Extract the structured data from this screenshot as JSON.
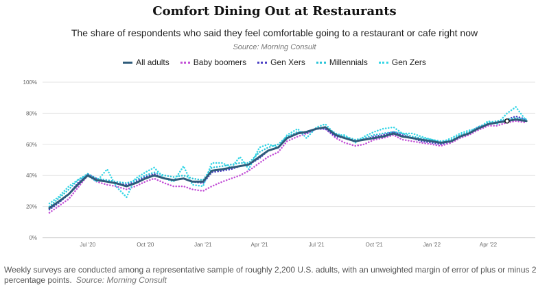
{
  "title": "Comfort Dining Out at Restaurants",
  "subtitle": "The share of respondents who said they feel comfortable going to a restaurant or cafe right now",
  "source": "Source: Morning Consult",
  "footnote": "Weekly surveys are conducted among a representative sample of roughly 2,200 U.S. adults, with an unweighted margin of error of plus or minus 2 percentage points.",
  "footnote_source": "Source: Morning Consult",
  "chart_data": {
    "type": "line",
    "title": "Comfort Dining Out at Restaurants",
    "xlabel": "",
    "ylabel": "",
    "ylim": [
      0,
      100
    ],
    "y_ticks": [
      0,
      20,
      40,
      60,
      80,
      100
    ],
    "y_tick_labels": [
      "0%",
      "20%",
      "40%",
      "60%",
      "80%",
      "100%"
    ],
    "x_tick_labels": [
      "Jul '20",
      "Oct '20",
      "Jan '21",
      "Apr '21",
      "Jul '21",
      "Oct '21",
      "Jan '22",
      "Apr '22"
    ],
    "x_tick_dates": [
      "2020-07-01",
      "2020-10-01",
      "2021-01-01",
      "2021-04-01",
      "2021-07-01",
      "2021-10-01",
      "2022-01-01",
      "2022-04-01"
    ],
    "x_range": [
      "2020-04-20",
      "2022-06-15"
    ],
    "grid": true,
    "legend_position": "top-center",
    "x": [
      "2020-05-01",
      "2020-05-15",
      "2020-06-01",
      "2020-06-15",
      "2020-07-01",
      "2020-07-15",
      "2020-08-01",
      "2020-08-15",
      "2020-09-01",
      "2020-09-15",
      "2020-10-01",
      "2020-10-15",
      "2020-11-01",
      "2020-11-15",
      "2020-12-01",
      "2020-12-15",
      "2021-01-01",
      "2021-01-15",
      "2021-02-01",
      "2021-02-15",
      "2021-03-01",
      "2021-03-15",
      "2021-04-01",
      "2021-04-15",
      "2021-05-01",
      "2021-05-15",
      "2021-06-01",
      "2021-06-15",
      "2021-07-01",
      "2021-07-15",
      "2021-08-01",
      "2021-08-15",
      "2021-09-01",
      "2021-09-15",
      "2021-10-01",
      "2021-10-15",
      "2021-11-01",
      "2021-11-15",
      "2021-12-01",
      "2021-12-15",
      "2022-01-01",
      "2022-01-15",
      "2022-02-01",
      "2022-02-15",
      "2022-03-01",
      "2022-03-15",
      "2022-04-01",
      "2022-04-15",
      "2022-05-01",
      "2022-05-15",
      "2022-06-01"
    ],
    "series": [
      {
        "name": "All adults",
        "color": "#2e5b7a",
        "dash": "solid",
        "highlight_last": true,
        "values": [
          19,
          23,
          28,
          34,
          40,
          37,
          36,
          35,
          33,
          35,
          38,
          40,
          38,
          37,
          38,
          36,
          36,
          43,
          44,
          45,
          46,
          47,
          52,
          56,
          58,
          64,
          67,
          68,
          70,
          71,
          66,
          64,
          62,
          63,
          64,
          65,
          67,
          65,
          64,
          63,
          62,
          61,
          62,
          65,
          67,
          70,
          73,
          74,
          75,
          76,
          75
        ]
      },
      {
        "name": "Baby boomers",
        "color": "#c24fd6",
        "dash": "dots",
        "values": [
          16,
          20,
          25,
          32,
          40,
          36,
          34,
          33,
          31,
          33,
          36,
          38,
          35,
          33,
          33,
          31,
          30,
          33,
          36,
          38,
          40,
          43,
          48,
          52,
          55,
          62,
          65,
          67,
          70,
          70,
          64,
          61,
          59,
          60,
          63,
          64,
          66,
          63,
          62,
          61,
          60,
          59,
          61,
          64,
          66,
          69,
          72,
          72,
          74,
          75,
          74
        ]
      },
      {
        "name": "Gen Xers",
        "color": "#4a3fc4",
        "dash": "dots",
        "values": [
          18,
          22,
          28,
          35,
          41,
          38,
          36,
          35,
          34,
          36,
          39,
          41,
          38,
          37,
          38,
          36,
          35,
          42,
          43,
          44,
          46,
          47,
          51,
          56,
          58,
          64,
          68,
          67,
          70,
          70,
          65,
          64,
          62,
          63,
          65,
          66,
          68,
          66,
          64,
          62,
          61,
          60,
          62,
          65,
          67,
          71,
          73,
          74,
          76,
          78,
          76
        ]
      },
      {
        "name": "Millennials",
        "color": "#2bc4d8",
        "dash": "dots",
        "values": [
          20,
          25,
          31,
          37,
          41,
          38,
          37,
          36,
          35,
          37,
          40,
          42,
          40,
          39,
          40,
          38,
          37,
          45,
          46,
          47,
          48,
          48,
          55,
          58,
          60,
          65,
          68,
          68,
          70,
          71,
          67,
          65,
          63,
          64,
          66,
          67,
          68,
          67,
          65,
          64,
          63,
          62,
          63,
          66,
          68,
          71,
          74,
          75,
          76,
          77,
          76
        ]
      },
      {
        "name": "Gen Zers",
        "color": "#35d6e6",
        "dash": "dots",
        "values": [
          22,
          26,
          33,
          37,
          40,
          36,
          44,
          33,
          26,
          38,
          42,
          45,
          38,
          36,
          46,
          34,
          33,
          48,
          48,
          45,
          52,
          44,
          58,
          60,
          58,
          66,
          70,
          64,
          71,
          73,
          66,
          66,
          61,
          65,
          68,
          70,
          71,
          67,
          67,
          65,
          63,
          61,
          64,
          67,
          69,
          70,
          75,
          73,
          80,
          84,
          75
        ]
      }
    ]
  }
}
